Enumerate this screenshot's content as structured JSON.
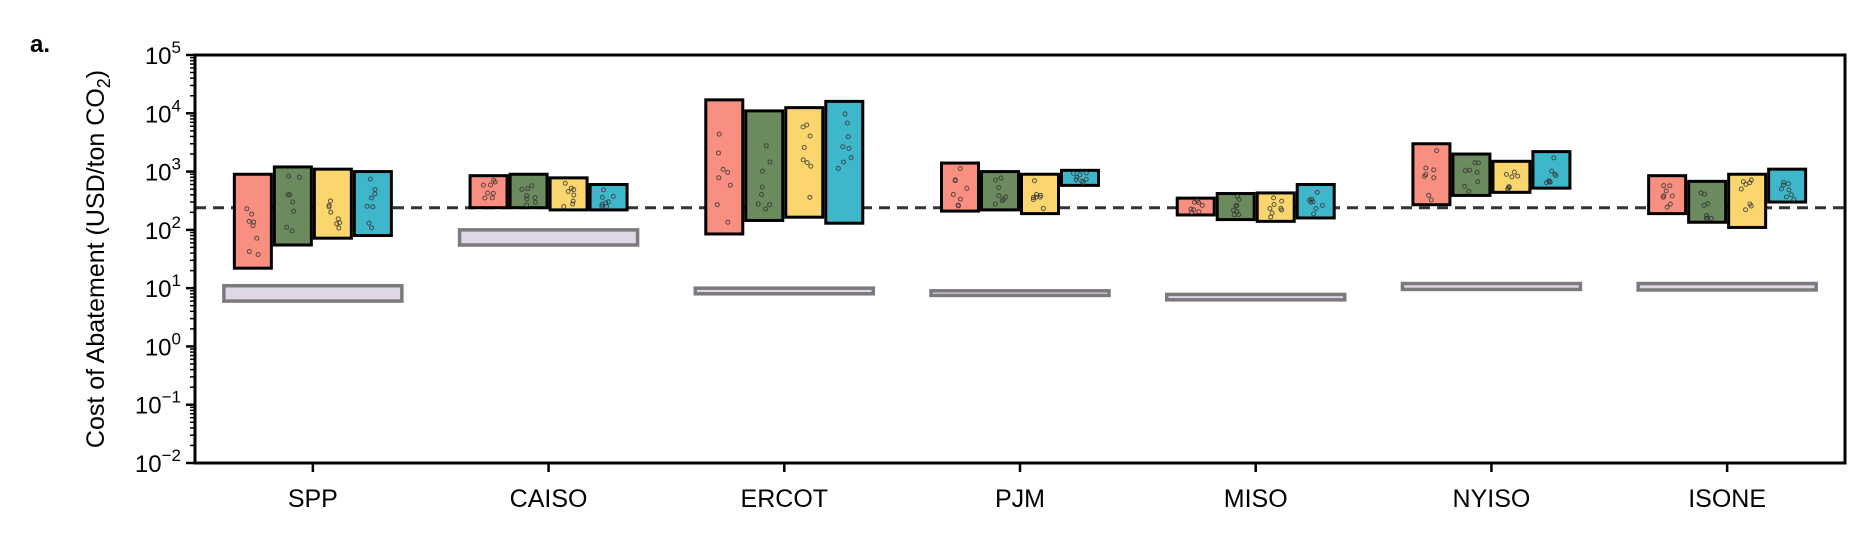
{
  "panel_label": "a.",
  "colors": {
    "series": [
      "#f98f81",
      "#6b8a5d",
      "#fbd66f",
      "#3fb7cb"
    ],
    "bar_edge": "#000000",
    "benchmark_fill": "#e0d7e6",
    "benchmark_edge": "#7c7a7c",
    "reference_line": "#333333",
    "dots": "#333333"
  },
  "chart_data": {
    "type": "bar",
    "description_kind": "floating range bars on log axis with dashed reference line",
    "ylabel_text": "Cost of Abatement (USD/ton CO",
    "ylabel_subscript": "2",
    "ylabel_close": ")",
    "yscale": "log",
    "ylim": [
      0.01,
      100000
    ],
    "yticks": [
      {
        "base": "10",
        "exp": "5",
        "value": 100000
      },
      {
        "base": "10",
        "exp": "4",
        "value": 10000
      },
      {
        "base": "10",
        "exp": "3",
        "value": 1000
      },
      {
        "base": "10",
        "exp": "2",
        "value": 100
      },
      {
        "base": "10",
        "exp": "1",
        "value": 10
      },
      {
        "base": "10",
        "exp": "0",
        "value": 1
      },
      {
        "base": "10",
        "exp": "−1",
        "value": 0.1
      },
      {
        "base": "10",
        "exp": "−2",
        "value": 0.01
      }
    ],
    "reference_line": 240,
    "categories": [
      "SPP",
      "CAISO",
      "ERCOT",
      "PJM",
      "MISO",
      "NYISO",
      "ISONE"
    ],
    "series_ranges": [
      [
        [
          22,
          900
        ],
        [
          55,
          1200
        ],
        [
          72,
          1100
        ],
        [
          80,
          1000
        ]
      ],
      [
        [
          240,
          850
        ],
        [
          240,
          900
        ],
        [
          220,
          780
        ],
        [
          220,
          600
        ]
      ],
      [
        [
          85,
          17000
        ],
        [
          145,
          11000
        ],
        [
          165,
          12500
        ],
        [
          130,
          16000
        ]
      ],
      [
        [
          210,
          1400
        ],
        [
          220,
          1000
        ],
        [
          190,
          900
        ],
        [
          580,
          1050
        ]
      ],
      [
        [
          180,
          350
        ],
        [
          150,
          420
        ],
        [
          140,
          430
        ],
        [
          160,
          600
        ]
      ],
      [
        [
          270,
          3000
        ],
        [
          390,
          2000
        ],
        [
          440,
          1500
        ],
        [
          520,
          2200
        ]
      ],
      [
        [
          190,
          850
        ],
        [
          135,
          680
        ],
        [
          110,
          900
        ],
        [
          300,
          1100
        ]
      ]
    ],
    "benchmark_ranges": [
      [
        6,
        11
      ],
      [
        55,
        100
      ],
      [
        8,
        10
      ],
      [
        7.5,
        9
      ],
      [
        6.3,
        7.8
      ],
      [
        9.5,
        12
      ],
      [
        9.3,
        12
      ]
    ],
    "grid": false,
    "legend": false
  }
}
